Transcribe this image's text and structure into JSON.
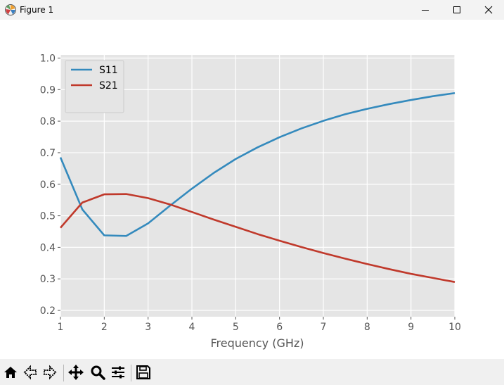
{
  "window": {
    "title": "Figure 1",
    "icon": "matplotlib-icon"
  },
  "toolbar": {
    "buttons": [
      {
        "name": "home-icon"
      },
      {
        "name": "back-arrow-icon"
      },
      {
        "name": "forward-arrow-icon"
      },
      {
        "name": "pan-icon"
      },
      {
        "name": "zoom-icon"
      },
      {
        "name": "subplots-icon"
      },
      {
        "name": "save-icon"
      }
    ]
  },
  "chart_data": {
    "type": "line",
    "title": "",
    "xlabel": "Frequency (GHz)",
    "ylabel": "",
    "xlim": [
      1,
      10
    ],
    "ylim": [
      0.18,
      1.01
    ],
    "xticks": [
      1,
      2,
      3,
      4,
      5,
      6,
      7,
      8,
      9,
      10
    ],
    "yticks": [
      0.2,
      0.3,
      0.4,
      0.5,
      0.6,
      0.7,
      0.8,
      0.9,
      1.0
    ],
    "grid": true,
    "legend": "top-left",
    "x": [
      1,
      1.5,
      2,
      2.5,
      3,
      3.5,
      4,
      4.5,
      5,
      5.5,
      6,
      6.5,
      7,
      7.5,
      8,
      8.5,
      9,
      9.5,
      10
    ],
    "series": [
      {
        "name": "S11",
        "color": "#348abd",
        "values": [
          0.685,
          0.52,
          0.438,
          0.436,
          0.476,
          0.532,
          0.586,
          0.636,
          0.68,
          0.717,
          0.749,
          0.777,
          0.801,
          0.822,
          0.839,
          0.854,
          0.867,
          0.879,
          0.889
        ]
      },
      {
        "name": "S21",
        "color": "#c0392b",
        "values": [
          0.462,
          0.542,
          0.568,
          0.569,
          0.556,
          0.536,
          0.512,
          0.488,
          0.465,
          0.442,
          0.421,
          0.401,
          0.382,
          0.364,
          0.347,
          0.331,
          0.316,
          0.303,
          0.29
        ]
      }
    ]
  }
}
